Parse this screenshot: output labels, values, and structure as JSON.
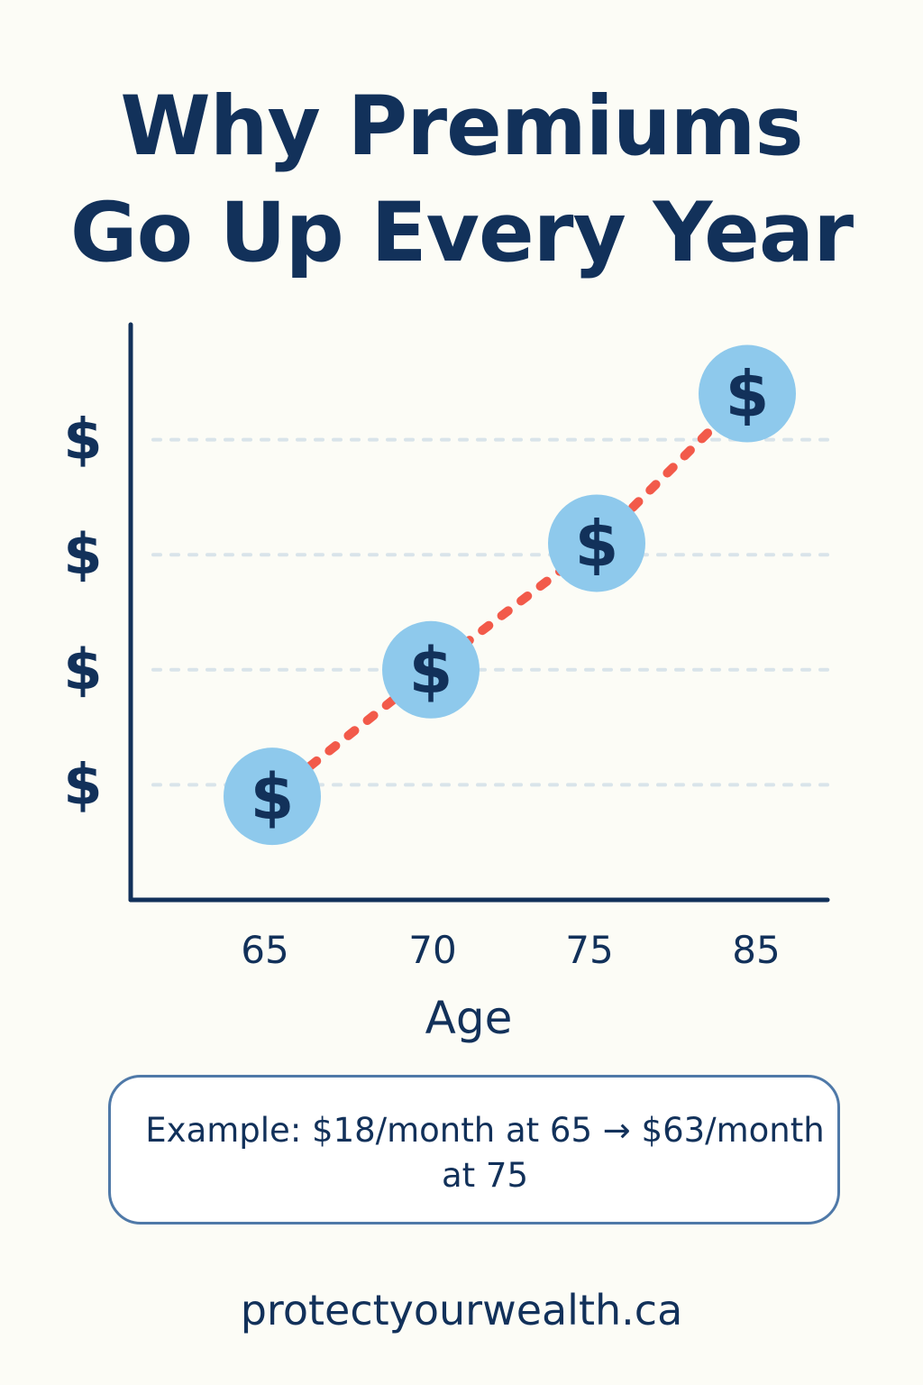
{
  "title_lines": [
    "Why Premiums",
    "Go Up Every Year"
  ],
  "chart_data": {
    "type": "line",
    "title": "Why Premiums Go Up Every Year",
    "xlabel": "Age",
    "ylabel": "",
    "categories": [
      "65",
      "70",
      "75",
      "85"
    ],
    "y_tick_labels": [
      "$",
      "$",
      "$",
      "$"
    ],
    "point_label": "$",
    "series": [
      {
        "values": [
          0.9,
          2.0,
          3.1,
          4.4
        ]
      }
    ],
    "ylim": [
      0,
      5
    ],
    "grid": true,
    "line_style": "dotted",
    "colors": {
      "line": "#f25a4a",
      "marker": "#8ec9ec",
      "axis": "#12315a",
      "grid": "#d9e4ea",
      "text": "#12315a"
    }
  },
  "example": {
    "text": "Example: $18/month at 65 → $63/month at 75"
  },
  "footer": {
    "website": "protectyourwealth.ca"
  }
}
